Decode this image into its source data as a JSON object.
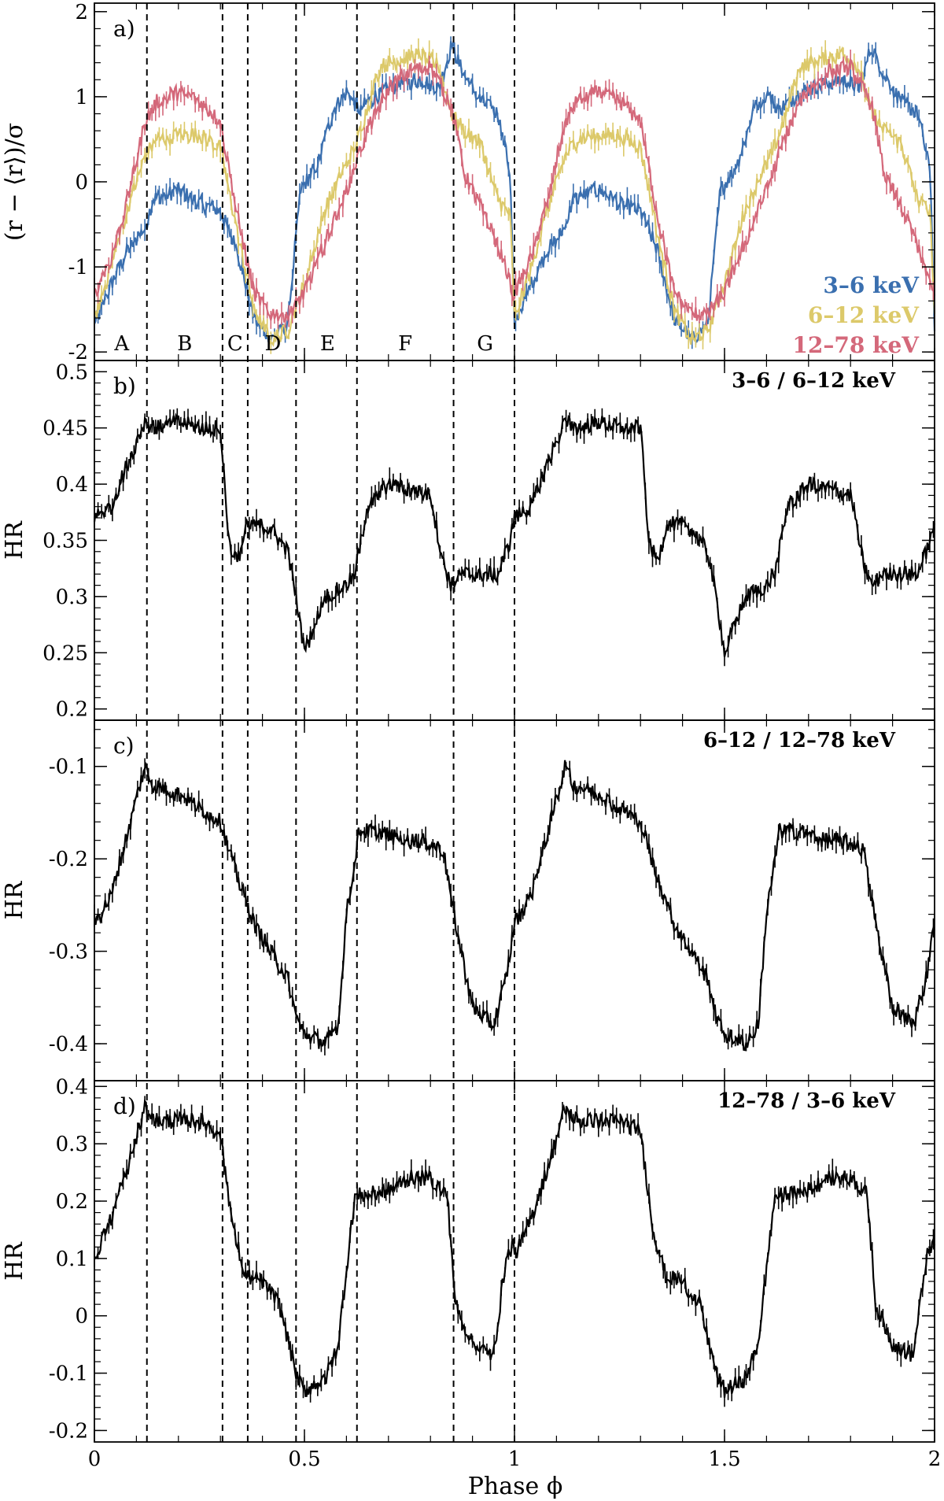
{
  "chart_data": {
    "type": "line",
    "x_range": [
      0,
      2
    ],
    "xlabel": "Phase ϕ",
    "x_ticks": [
      0,
      0.5,
      1,
      1.5,
      2
    ],
    "x_tick_labels": [
      "0",
      "0.5",
      "1",
      "1.5",
      "2"
    ],
    "phase_dividers": [
      0.125,
      0.305,
      0.365,
      0.48,
      0.625,
      0.855,
      1.0
    ],
    "regions": [
      {
        "label": "A",
        "phase": 0.065
      },
      {
        "label": "B",
        "phase": 0.215
      },
      {
        "label": "C",
        "phase": 0.335
      },
      {
        "label": "D",
        "phase": 0.425
      },
      {
        "label": "E",
        "phase": 0.555
      },
      {
        "label": "F",
        "phase": 0.74
      },
      {
        "label": "G",
        "phase": 0.93
      }
    ],
    "panels": [
      {
        "id": "a",
        "label": "a)",
        "ylabel": "(r − ⟨r⟩)/σ",
        "ylim": [
          -2.1,
          2.1
        ],
        "y_ticks": [
          -2,
          -1,
          0,
          1,
          2
        ],
        "y_tick_labels": [
          "-2",
          "-1",
          "0",
          "1",
          "2"
        ],
        "series": [
          {
            "name": "3–6 keV",
            "color": "#3a6faf",
            "phase": [
              0,
              0.04,
              0.08,
              0.12,
              0.14,
              0.2,
              0.25,
              0.3,
              0.34,
              0.38,
              0.42,
              0.46,
              0.49,
              0.53,
              0.57,
              0.6,
              0.63,
              0.68,
              0.73,
              0.78,
              0.82,
              0.85,
              0.88,
              0.92,
              0.96,
              0.99,
              1.0
            ],
            "values": [
              -1.7,
              -1.2,
              -0.8,
              -0.55,
              -0.2,
              -0.1,
              -0.25,
              -0.35,
              -0.8,
              -1.6,
              -1.85,
              -1.7,
              -0.1,
              0.2,
              0.85,
              1.05,
              0.85,
              1.05,
              1.15,
              1.2,
              1.1,
              1.6,
              1.25,
              0.95,
              0.8,
              0.1,
              -1.7
            ]
          },
          {
            "name": "6–12 keV",
            "color": "#dcc96a",
            "phase": [
              0,
              0.04,
              0.08,
              0.12,
              0.15,
              0.2,
              0.25,
              0.3,
              0.34,
              0.38,
              0.42,
              0.46,
              0.5,
              0.55,
              0.6,
              0.63,
              0.68,
              0.73,
              0.78,
              0.82,
              0.85,
              0.88,
              0.92,
              0.96,
              0.99,
              1.0
            ],
            "values": [
              -1.6,
              -1.0,
              -0.3,
              0.3,
              0.5,
              0.55,
              0.55,
              0.4,
              -0.6,
              -1.5,
              -1.85,
              -1.75,
              -1.2,
              -0.3,
              0.2,
              0.55,
              1.35,
              1.45,
              1.5,
              1.35,
              0.8,
              0.6,
              0.45,
              -0.2,
              -0.4,
              -1.6
            ]
          },
          {
            "name": "12–78 keV",
            "color": "#d4687a",
            "phase": [
              0,
              0.04,
              0.08,
              0.12,
              0.15,
              0.2,
              0.25,
              0.3,
              0.34,
              0.38,
              0.42,
              0.46,
              0.5,
              0.55,
              0.6,
              0.65,
              0.7,
              0.75,
              0.8,
              0.85,
              0.88,
              0.92,
              0.96,
              0.99,
              1.0
            ],
            "values": [
              -1.3,
              -0.9,
              -0.2,
              0.7,
              0.95,
              1.05,
              0.95,
              0.7,
              -0.4,
              -1.3,
              -1.55,
              -1.55,
              -1.3,
              -0.7,
              -0.1,
              0.6,
              1.1,
              1.3,
              1.35,
              0.9,
              0.1,
              -0.3,
              -0.75,
              -1.2,
              -1.35
            ]
          }
        ]
      },
      {
        "id": "b",
        "label": "b)",
        "ratio_label": "3–6 / 6–12 keV",
        "ylabel": "HR",
        "ylim": [
          0.19,
          0.51
        ],
        "y_ticks": [
          0.2,
          0.25,
          0.3,
          0.35,
          0.4,
          0.45,
          0.5
        ],
        "y_tick_labels": [
          "0.2",
          "0.25",
          "0.3",
          "0.35",
          "0.4",
          "0.45",
          "0.5"
        ],
        "series": [
          {
            "name": "",
            "color": "#000000",
            "phase": [
              0,
              0.04,
              0.08,
              0.12,
              0.15,
              0.2,
              0.25,
              0.3,
              0.32,
              0.34,
              0.36,
              0.38,
              0.42,
              0.46,
              0.48,
              0.5,
              0.55,
              0.6,
              0.62,
              0.65,
              0.7,
              0.75,
              0.8,
              0.83,
              0.85,
              0.88,
              0.92,
              0.96,
              0.99,
              1.0
            ],
            "values": [
              0.37,
              0.38,
              0.42,
              0.455,
              0.45,
              0.455,
              0.45,
              0.45,
              0.35,
              0.33,
              0.36,
              0.365,
              0.36,
              0.34,
              0.3,
              0.25,
              0.3,
              0.31,
              0.32,
              0.38,
              0.4,
              0.395,
              0.39,
              0.33,
              0.31,
              0.32,
              0.32,
              0.32,
              0.35,
              0.37
            ]
          }
        ]
      },
      {
        "id": "c",
        "label": "c)",
        "ratio_label": "6–12 / 12–78 keV",
        "ylabel": "HR",
        "ylim": [
          -0.44,
          -0.05
        ],
        "y_ticks": [
          -0.4,
          -0.3,
          -0.2,
          -0.1
        ],
        "y_tick_labels": [
          "-0.4",
          "-0.3",
          "-0.2",
          "-0.1"
        ],
        "series": [
          {
            "name": "",
            "color": "#000000",
            "phase": [
              0,
              0.04,
              0.08,
              0.12,
              0.14,
              0.2,
              0.25,
              0.3,
              0.34,
              0.38,
              0.42,
              0.46,
              0.48,
              0.5,
              0.55,
              0.58,
              0.6,
              0.63,
              0.68,
              0.73,
              0.78,
              0.83,
              0.86,
              0.9,
              0.95,
              0.98,
              1.0
            ],
            "values": [
              -0.27,
              -0.24,
              -0.17,
              -0.1,
              -0.12,
              -0.13,
              -0.145,
              -0.16,
              -0.22,
              -0.27,
              -0.3,
              -0.33,
              -0.37,
              -0.39,
              -0.4,
              -0.38,
              -0.26,
              -0.17,
              -0.17,
              -0.18,
              -0.18,
              -0.19,
              -0.27,
              -0.36,
              -0.38,
              -0.33,
              -0.27
            ]
          }
        ]
      },
      {
        "id": "d",
        "label": "d)",
        "ratio_label": "12–78 / 3–6 keV",
        "ylabel": "HR",
        "ylim": [
          -0.22,
          0.41
        ],
        "y_ticks": [
          -0.2,
          -0.1,
          0,
          0.1,
          0.2,
          0.3,
          0.4
        ],
        "y_tick_labels": [
          "-0.2",
          "-0.1",
          "0",
          "0.1",
          "0.2",
          "0.3",
          "0.4"
        ],
        "series": [
          {
            "name": "",
            "color": "#000000",
            "phase": [
              0,
              0.04,
              0.08,
              0.12,
              0.15,
              0.2,
              0.25,
              0.3,
              0.33,
              0.36,
              0.4,
              0.44,
              0.48,
              0.5,
              0.55,
              0.58,
              0.62,
              0.65,
              0.7,
              0.75,
              0.8,
              0.84,
              0.86,
              0.9,
              0.95,
              0.98,
              1.0
            ],
            "values": [
              0.1,
              0.17,
              0.26,
              0.36,
              0.34,
              0.34,
              0.34,
              0.32,
              0.15,
              0.07,
              0.06,
              0.02,
              -0.1,
              -0.13,
              -0.11,
              -0.05,
              0.21,
              0.21,
              0.22,
              0.24,
              0.24,
              0.21,
              0.02,
              -0.05,
              -0.07,
              0.1,
              0.13
            ]
          }
        ]
      }
    ]
  }
}
